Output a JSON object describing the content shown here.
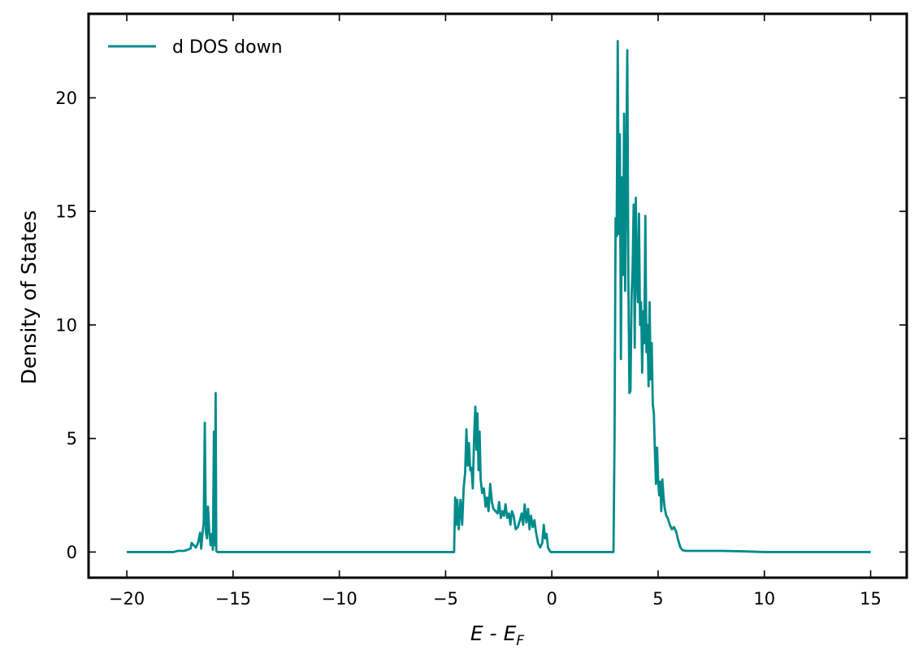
{
  "chart_data": {
    "type": "line",
    "xlabel": {
      "main": "E",
      "sep": " - ",
      "sub_base": "E",
      "sub": "F"
    },
    "ylabel": "Density of States",
    "xlim": [
      -21.8,
      16.7
    ],
    "ylim": [
      -1.13,
      23.7
    ],
    "xticks": [
      -20,
      -15,
      -10,
      -5,
      0,
      5,
      10,
      15
    ],
    "xtick_labels": [
      "−20",
      "−15",
      "−10",
      "−5",
      "0",
      "5",
      "10",
      "15"
    ],
    "yticks": [
      0,
      5,
      10,
      15,
      20
    ],
    "ytick_labels": [
      "0",
      "5",
      "10",
      "15",
      "20"
    ],
    "grid": false,
    "legend_position": "top-left",
    "series": [
      {
        "name": "d DOS down",
        "color": "#008b8b",
        "points": [
          [
            -20.0,
            0.0
          ],
          [
            -17.8,
            0.0
          ],
          [
            -17.6,
            0.05
          ],
          [
            -17.3,
            0.05
          ],
          [
            -17.15,
            0.1
          ],
          [
            -17.0,
            0.15
          ],
          [
            -16.95,
            0.4
          ],
          [
            -16.85,
            0.3
          ],
          [
            -16.75,
            0.2
          ],
          [
            -16.65,
            0.4
          ],
          [
            -16.55,
            0.85
          ],
          [
            -16.5,
            0.15
          ],
          [
            -16.45,
            0.7
          ],
          [
            -16.38,
            1.3
          ],
          [
            -16.33,
            5.7
          ],
          [
            -16.28,
            0.9
          ],
          [
            -16.23,
            0.6
          ],
          [
            -16.18,
            2.0
          ],
          [
            -16.12,
            0.9
          ],
          [
            -16.06,
            0.3
          ],
          [
            -16.0,
            0.8
          ],
          [
            -15.95,
            0.1
          ],
          [
            -15.9,
            5.3
          ],
          [
            -15.86,
            0.3
          ],
          [
            -15.82,
            7.0
          ],
          [
            -15.79,
            0.05
          ],
          [
            -15.74,
            0.0
          ],
          [
            -4.6,
            0.0
          ],
          [
            -4.55,
            2.4
          ],
          [
            -4.5,
            1.2
          ],
          [
            -4.45,
            2.3
          ],
          [
            -4.38,
            1.0
          ],
          [
            -4.3,
            2.3
          ],
          [
            -4.22,
            1.2
          ],
          [
            -4.15,
            2.8
          ],
          [
            -4.08,
            3.5
          ],
          [
            -4.02,
            5.4
          ],
          [
            -3.96,
            3.8
          ],
          [
            -3.9,
            4.8
          ],
          [
            -3.84,
            3.6
          ],
          [
            -3.78,
            3.7
          ],
          [
            -3.72,
            2.8
          ],
          [
            -3.66,
            5.0
          ],
          [
            -3.6,
            6.4
          ],
          [
            -3.55,
            4.5
          ],
          [
            -3.5,
            6.1
          ],
          [
            -3.45,
            3.6
          ],
          [
            -3.4,
            5.3
          ],
          [
            -3.35,
            3.2
          ],
          [
            -3.28,
            2.6
          ],
          [
            -3.2,
            2.8
          ],
          [
            -3.12,
            2.0
          ],
          [
            -3.05,
            2.4
          ],
          [
            -2.98,
            1.8
          ],
          [
            -2.9,
            3.0
          ],
          [
            -2.82,
            2.2
          ],
          [
            -2.75,
            1.9
          ],
          [
            -2.65,
            1.8
          ],
          [
            -2.55,
            1.7
          ],
          [
            -2.48,
            2.2
          ],
          [
            -2.4,
            1.5
          ],
          [
            -2.32,
            1.8
          ],
          [
            -2.25,
            1.6
          ],
          [
            -2.18,
            2.1
          ],
          [
            -2.1,
            1.5
          ],
          [
            -2.02,
            1.7
          ],
          [
            -1.95,
            1.2
          ],
          [
            -1.88,
            1.8
          ],
          [
            -1.8,
            1.6
          ],
          [
            -1.7,
            1.0
          ],
          [
            -1.6,
            1.1
          ],
          [
            -1.5,
            1.4
          ],
          [
            -1.42,
            1.7
          ],
          [
            -1.35,
            1.2
          ],
          [
            -1.28,
            2.1
          ],
          [
            -1.2,
            1.3
          ],
          [
            -1.12,
            1.9
          ],
          [
            -1.05,
            1.0
          ],
          [
            -0.98,
            1.6
          ],
          [
            -0.9,
            1.1
          ],
          [
            -0.82,
            1.4
          ],
          [
            -0.75,
            0.9
          ],
          [
            -0.65,
            0.4
          ],
          [
            -0.55,
            0.2
          ],
          [
            -0.45,
            0.4
          ],
          [
            -0.38,
            1.2
          ],
          [
            -0.32,
            0.6
          ],
          [
            -0.25,
            0.8
          ],
          [
            -0.18,
            0.2
          ],
          [
            -0.1,
            0.05
          ],
          [
            -0.05,
            0.0
          ],
          [
            2.9,
            0.0
          ],
          [
            2.95,
            5.0
          ],
          [
            3.0,
            14.7
          ],
          [
            3.05,
            13.9
          ],
          [
            3.1,
            22.5
          ],
          [
            3.15,
            14.0
          ],
          [
            3.2,
            18.4
          ],
          [
            3.25,
            8.5
          ],
          [
            3.3,
            16.5
          ],
          [
            3.35,
            12.2
          ],
          [
            3.4,
            19.3
          ],
          [
            3.45,
            11.5
          ],
          [
            3.5,
            17.0
          ],
          [
            3.55,
            22.1
          ],
          [
            3.6,
            12.0
          ],
          [
            3.65,
            7.0
          ],
          [
            3.7,
            7.1
          ],
          [
            3.75,
            11.2
          ],
          [
            3.8,
            12.5
          ],
          [
            3.85,
            15.3
          ],
          [
            3.9,
            9.0
          ],
          [
            3.95,
            15.6
          ],
          [
            4.0,
            12.0
          ],
          [
            4.05,
            11.0
          ],
          [
            4.1,
            14.9
          ],
          [
            4.15,
            10.0
          ],
          [
            4.2,
            11.0
          ],
          [
            4.25,
            7.9
          ],
          [
            4.3,
            10.6
          ],
          [
            4.35,
            9.2
          ],
          [
            4.4,
            14.8
          ],
          [
            4.45,
            8.8
          ],
          [
            4.5,
            10.0
          ],
          [
            4.55,
            7.3
          ],
          [
            4.6,
            11.0
          ],
          [
            4.65,
            7.6
          ],
          [
            4.7,
            9.2
          ],
          [
            4.75,
            6.5
          ],
          [
            4.8,
            6.1
          ],
          [
            4.85,
            4.4
          ],
          [
            4.9,
            3.0
          ],
          [
            4.95,
            4.6
          ],
          [
            5.0,
            3.2
          ],
          [
            5.05,
            2.5
          ],
          [
            5.1,
            3.1
          ],
          [
            5.15,
            1.8
          ],
          [
            5.2,
            3.2
          ],
          [
            5.25,
            2.5
          ],
          [
            5.3,
            2.0
          ],
          [
            5.38,
            1.6
          ],
          [
            5.45,
            1.5
          ],
          [
            5.55,
            1.2
          ],
          [
            5.65,
            1.0
          ],
          [
            5.75,
            1.1
          ],
          [
            5.85,
            0.9
          ],
          [
            5.95,
            0.5
          ],
          [
            6.05,
            0.2
          ],
          [
            6.15,
            0.08
          ],
          [
            6.3,
            0.05
          ],
          [
            8.0,
            0.05
          ],
          [
            9.0,
            0.03
          ],
          [
            10.0,
            0.0
          ],
          [
            15.0,
            0.0
          ]
        ]
      }
    ]
  }
}
